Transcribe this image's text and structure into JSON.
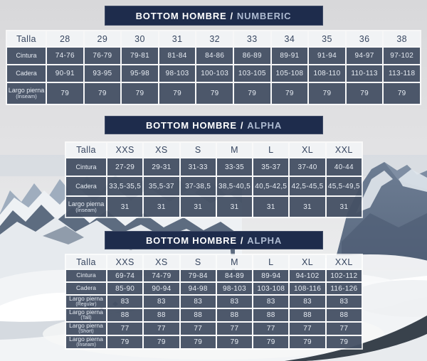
{
  "colors": {
    "brand_navy": "#1e2c4c",
    "cell_blue": "#3f4e68",
    "header_light": "#f1f3f5"
  },
  "tables": [
    {
      "title_main": "BOTTOM HOMBRE",
      "title_sep": "/",
      "title_variant": "NUMBERIC",
      "header": [
        "Talla",
        "28",
        "29",
        "30",
        "31",
        "32",
        "33",
        "34",
        "35",
        "36",
        "38"
      ],
      "rows": [
        {
          "label": "Cintura",
          "sublabel": "",
          "values": [
            "74-76",
            "76-79",
            "79-81",
            "81-84",
            "84-86",
            "86-89",
            "89-91",
            "91-94",
            "94-97",
            "97-102"
          ]
        },
        {
          "label": "Cadera",
          "sublabel": "",
          "values": [
            "90-91",
            "93-95",
            "95-98",
            "98-103",
            "100-103",
            "103-105",
            "105-108",
            "108-110",
            "110-113",
            "113-118"
          ]
        },
        {
          "label": "Largo pierna",
          "sublabel": "(Inseam)",
          "values": [
            "79",
            "79",
            "79",
            "79",
            "79",
            "79",
            "79",
            "79",
            "79",
            "79"
          ]
        }
      ]
    },
    {
      "title_main": "BOTTOM HOMBRE",
      "title_sep": "/",
      "title_variant": "ALPHA",
      "header": [
        "Talla",
        "XXS",
        "XS",
        "S",
        "M",
        "L",
        "XL",
        "XXL"
      ],
      "rows": [
        {
          "label": "Cintura",
          "sublabel": "",
          "values": [
            "27-29",
            "29-31",
            "31-33",
            "33-35",
            "35-37",
            "37-40",
            "40-44"
          ]
        },
        {
          "label": "Cadera",
          "sublabel": "",
          "values": [
            "33,5-35,5",
            "35,5-37",
            "37-38,5",
            "38,5-40,5",
            "40,5-42,5",
            "42,5-45,5",
            "45,5-49,5"
          ]
        },
        {
          "label": "Largo pierna",
          "sublabel": "(Inseam)",
          "values": [
            "31",
            "31",
            "31",
            "31",
            "31",
            "31",
            "31"
          ]
        }
      ]
    },
    {
      "title_main": "BOTTOM HOMBRE",
      "title_sep": "/",
      "title_variant": "ALPHA",
      "header": [
        "Talla",
        "XXS",
        "XS",
        "S",
        "M",
        "L",
        "XL",
        "XXL"
      ],
      "rows": [
        {
          "label": "Cintura",
          "sublabel": "",
          "values": [
            "69-74",
            "74-79",
            "79-84",
            "84-89",
            "89-94",
            "94-102",
            "102-112"
          ]
        },
        {
          "label": "Cadera",
          "sublabel": "",
          "values": [
            "85-90",
            "90-94",
            "94-98",
            "98-103",
            "103-108",
            "108-116",
            "116-126"
          ]
        },
        {
          "label": "Largo pierna",
          "sublabel": "(Regular)",
          "values": [
            "83",
            "83",
            "83",
            "83",
            "83",
            "83",
            "83"
          ]
        },
        {
          "label": "Largo pierna",
          "sublabel": "(Tall)",
          "values": [
            "88",
            "88",
            "88",
            "88",
            "88",
            "88",
            "88"
          ]
        },
        {
          "label": "Largo pierna",
          "sublabel": "(Short)",
          "values": [
            "77",
            "77",
            "77",
            "77",
            "77",
            "77",
            "77"
          ]
        },
        {
          "label": "Largo pierna",
          "sublabel": "(Inseam)",
          "values": [
            "79",
            "79",
            "79",
            "79",
            "79",
            "79",
            "79"
          ]
        }
      ]
    }
  ]
}
